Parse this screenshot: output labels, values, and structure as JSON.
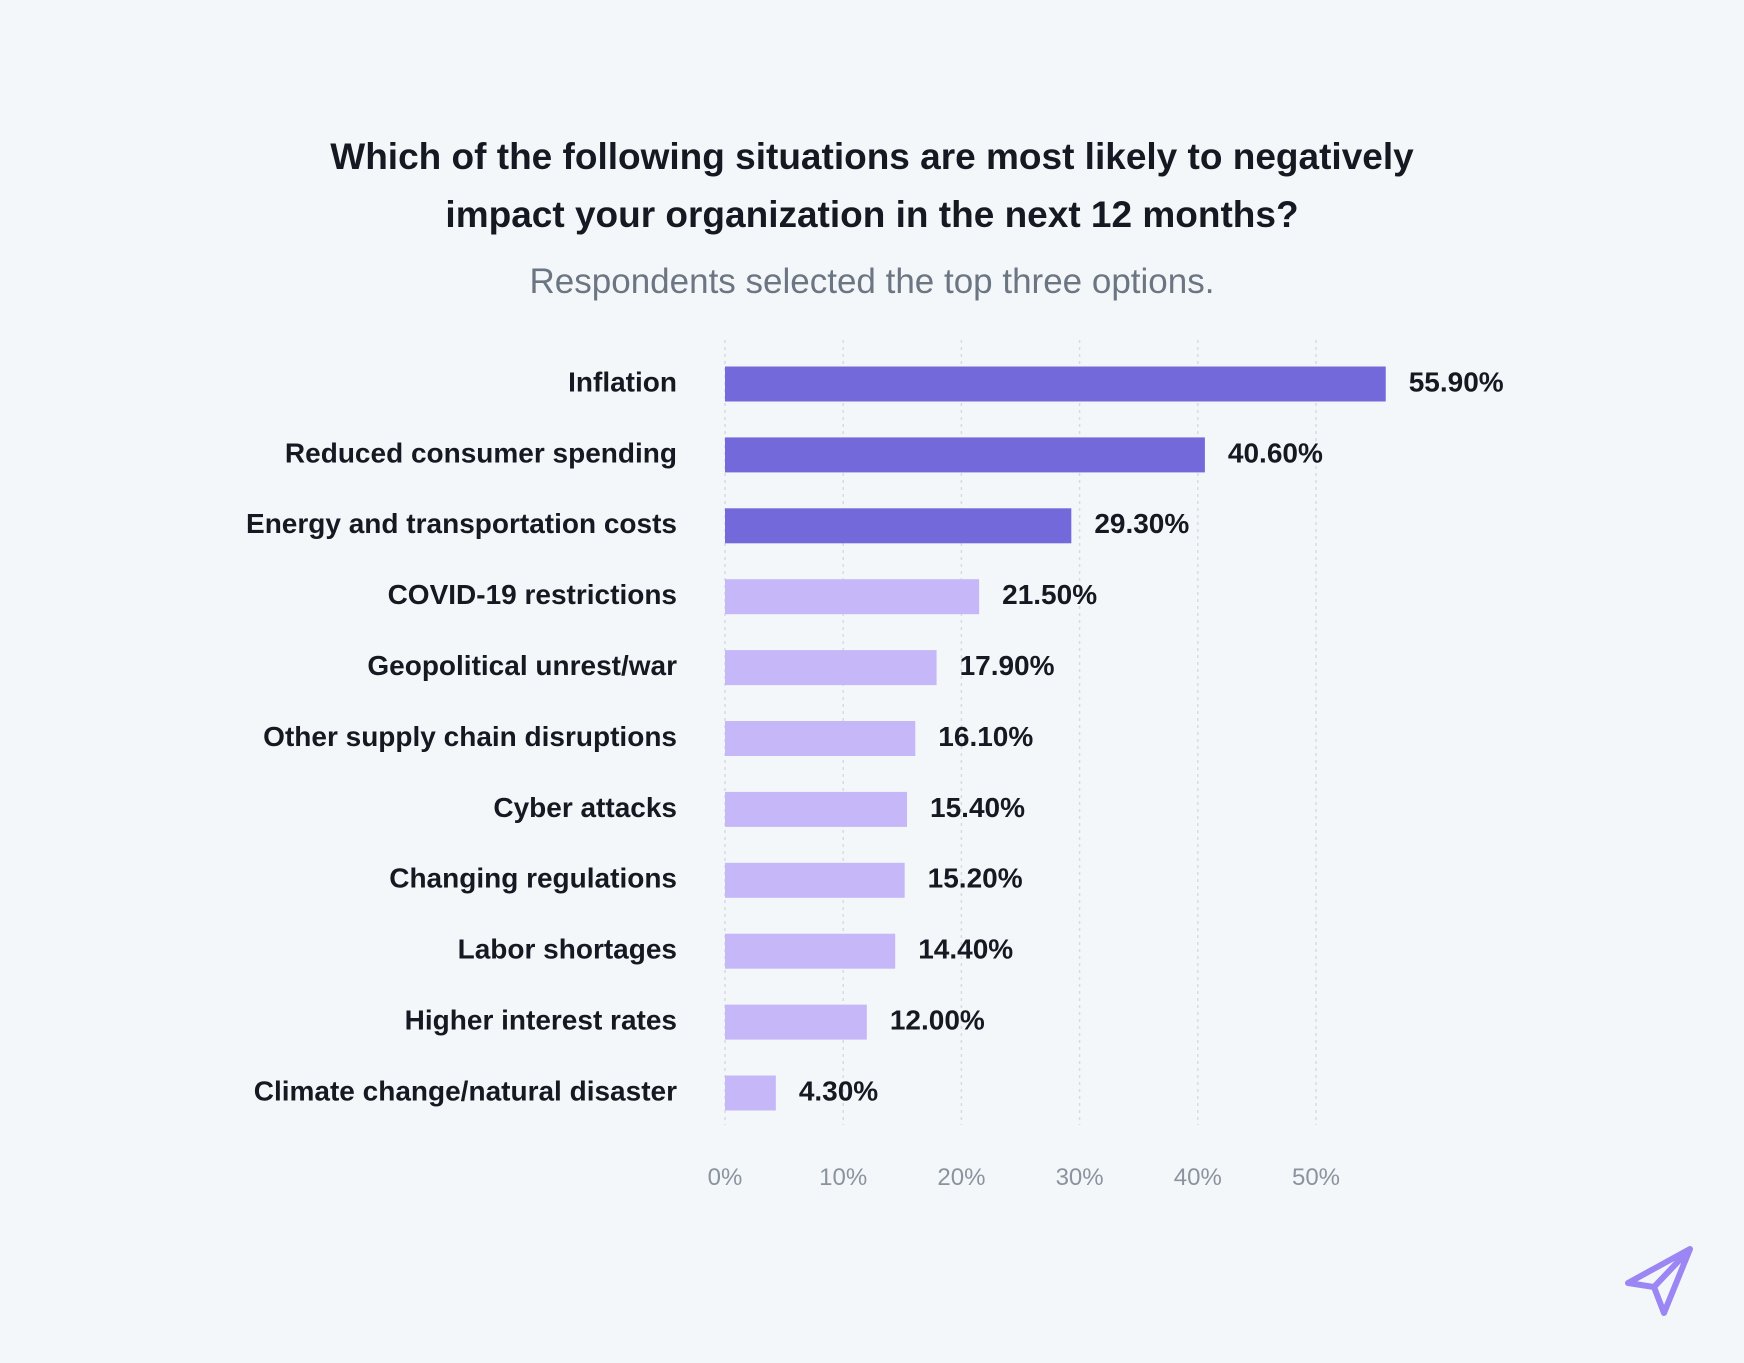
{
  "chart_data": {
    "type": "bar",
    "orientation": "horizontal",
    "title_lines": [
      "Which of the following situations are most likely to negatively",
      "impact your organization in the next 12 months?"
    ],
    "subtitle": "Respondents selected the top three options.",
    "categories": [
      "Inflation",
      "Reduced consumer spending",
      "Energy and transportation costs",
      "COVID-19 restrictions",
      "Geopolitical unrest/war",
      "Other supply chain disruptions",
      "Cyber attacks",
      "Changing regulations",
      "Labor shortages",
      "Higher interest rates",
      "Climate change/natural disaster"
    ],
    "values": [
      55.9,
      40.6,
      29.3,
      21.5,
      17.9,
      16.1,
      15.4,
      15.2,
      14.4,
      12.0,
      4.3
    ],
    "value_labels": [
      "55.90%",
      "40.60%",
      "29.30%",
      "21.50%",
      "17.90%",
      "16.10%",
      "15.40%",
      "15.20%",
      "14.40%",
      "12.00%",
      "4.30%"
    ],
    "highlight_count": 3,
    "x_ticks": [
      0,
      10,
      20,
      30,
      40,
      50
    ],
    "x_tick_labels": [
      "0%",
      "10%",
      "20%",
      "30%",
      "40%",
      "50%"
    ],
    "xlim": [
      0,
      60
    ],
    "grid": true,
    "colors": {
      "highlight": "#7369db",
      "normal": "#c6b8f8",
      "grid": "#d6dbe1"
    }
  },
  "logo": {
    "name": "paper-plane-logo",
    "color": "#9b86f3"
  }
}
